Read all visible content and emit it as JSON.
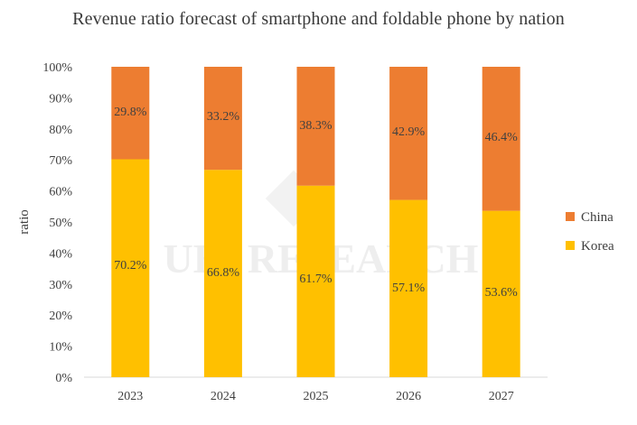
{
  "chart_data": {
    "type": "bar",
    "stacked": true,
    "title": "Revenue ratio forecast of smartphone and foldable phone by nation",
    "xlabel": "",
    "ylabel": "ratio",
    "categories": [
      "2023",
      "2024",
      "2025",
      "2026",
      "2027"
    ],
    "series": [
      {
        "name": "Korea",
        "values": [
          70.2,
          66.8,
          61.7,
          57.1,
          53.6
        ],
        "labels": [
          "70.2%",
          "66.8%",
          "61.7%",
          "57.1%",
          "53.6%"
        ],
        "color": "#FFC000"
      },
      {
        "name": "China",
        "values": [
          29.8,
          33.2,
          38.3,
          42.9,
          46.4
        ],
        "labels": [
          "29.8%",
          "33.2%",
          "38.3%",
          "42.9%",
          "46.4%"
        ],
        "color": "#ED7D31"
      }
    ],
    "ylim": [
      0,
      100
    ],
    "yticks": [
      "0%",
      "10%",
      "20%",
      "30%",
      "40%",
      "50%",
      "60%",
      "70%",
      "80%",
      "90%",
      "100%"
    ],
    "grid": false,
    "legend_position": "right",
    "watermark": "UBI RESEARCH"
  }
}
